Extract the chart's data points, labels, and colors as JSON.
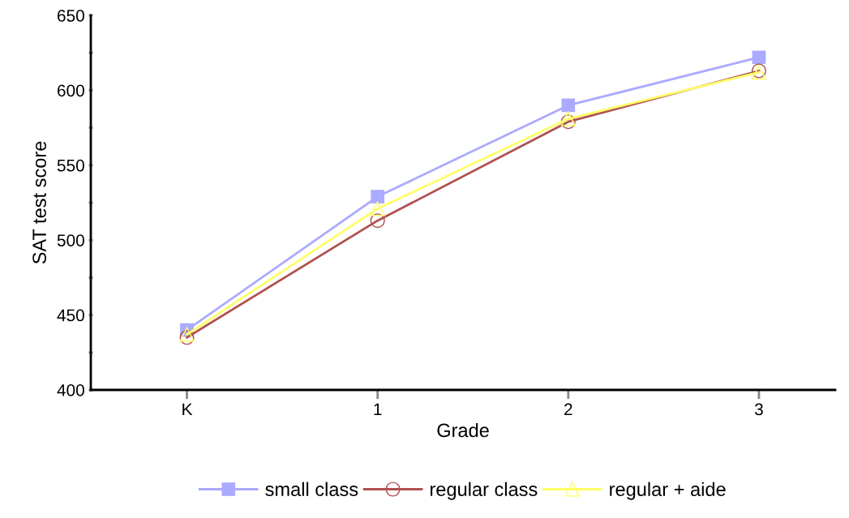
{
  "chart_data": {
    "type": "line",
    "xlabel": "Grade",
    "ylabel": "SAT test score",
    "categories": [
      "K",
      "1",
      "2",
      "3"
    ],
    "series": [
      {
        "name": "small class",
        "color": "#aaaaff",
        "marker": "square",
        "values": [
          440,
          529,
          590,
          622
        ]
      },
      {
        "name": "regular class",
        "color": "#b0504f",
        "marker": "circle",
        "values": [
          435,
          513,
          579,
          613
        ]
      },
      {
        "name": "regular + aide",
        "color": "#ffff66",
        "marker": "triangle",
        "values": [
          437,
          521,
          581,
          612
        ]
      }
    ],
    "ylim": [
      400,
      650
    ],
    "yticks": [
      400,
      {
        "value": 425,
        "label": null
      },
      450,
      {
        "value": 475,
        "label": null
      },
      500,
      {
        "value": 525,
        "label": null
      },
      550,
      {
        "value": 575,
        "label": null
      },
      600,
      {
        "value": 625,
        "label": null
      },
      650
    ],
    "grid": false,
    "legend": "bottom"
  }
}
